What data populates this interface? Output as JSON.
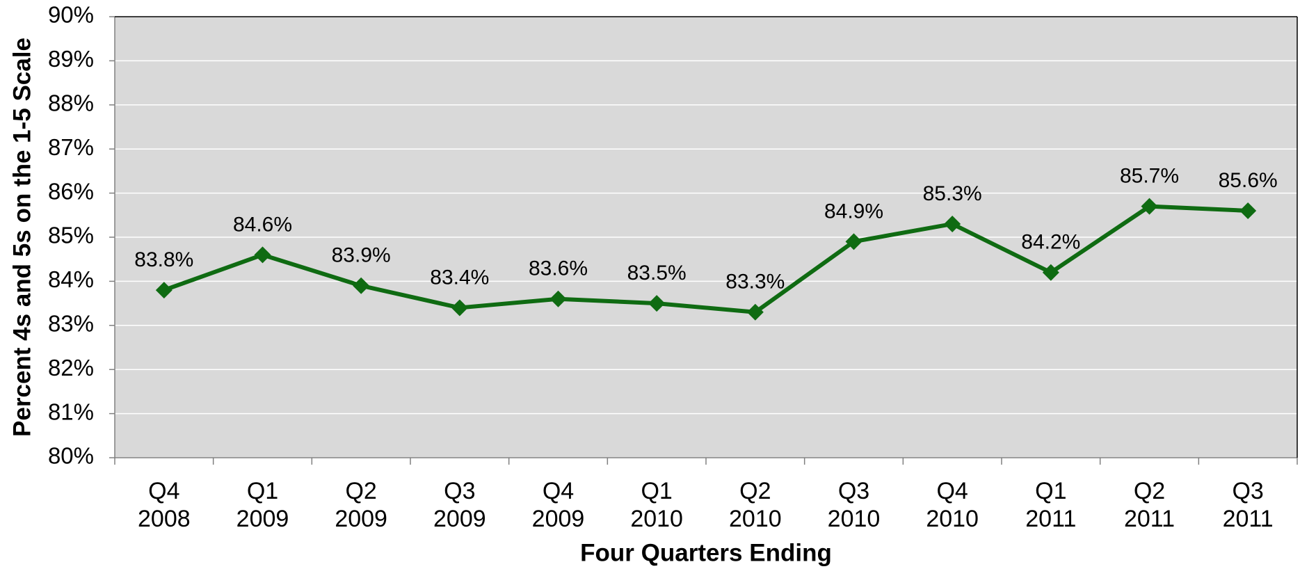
{
  "chart_data": {
    "type": "line",
    "x_label": "Four Quarters Ending",
    "y_label": "Percent 4s and 5s on the 1-5 Scale",
    "categories": [
      "Q4\n2008",
      "Q1\n2009",
      "Q2\n2009",
      "Q3\n2009",
      "Q4\n2009",
      "Q1\n2010",
      "Q2\n2010",
      "Q3\n2010",
      "Q4\n2010",
      "Q1\n2011",
      "Q2\n2011",
      "Q3\n2011"
    ],
    "values": [
      83.8,
      84.6,
      83.9,
      83.4,
      83.6,
      83.5,
      83.3,
      84.9,
      85.3,
      84.2,
      85.7,
      85.6
    ],
    "value_labels": [
      "83.8%",
      "84.6%",
      "83.9%",
      "83.4%",
      "83.6%",
      "83.5%",
      "83.3%",
      "84.9%",
      "85.3%",
      "84.2%",
      "85.7%",
      "85.6%"
    ],
    "color": "#0f6b12",
    "ylim": [
      80,
      90
    ],
    "yticks": [
      {
        "value": 80,
        "label": "80%"
      },
      {
        "value": 81,
        "label": "81%"
      },
      {
        "value": 82,
        "label": "82%"
      },
      {
        "value": 83,
        "label": "83%"
      },
      {
        "value": 84,
        "label": "84%"
      },
      {
        "value": 85,
        "label": "85%"
      },
      {
        "value": 86,
        "label": "86%"
      },
      {
        "value": 87,
        "label": "87%"
      },
      {
        "value": 88,
        "label": "88%"
      },
      {
        "value": 89,
        "label": "89%"
      },
      {
        "value": 90,
        "label": "90%"
      }
    ],
    "grid": true
  }
}
